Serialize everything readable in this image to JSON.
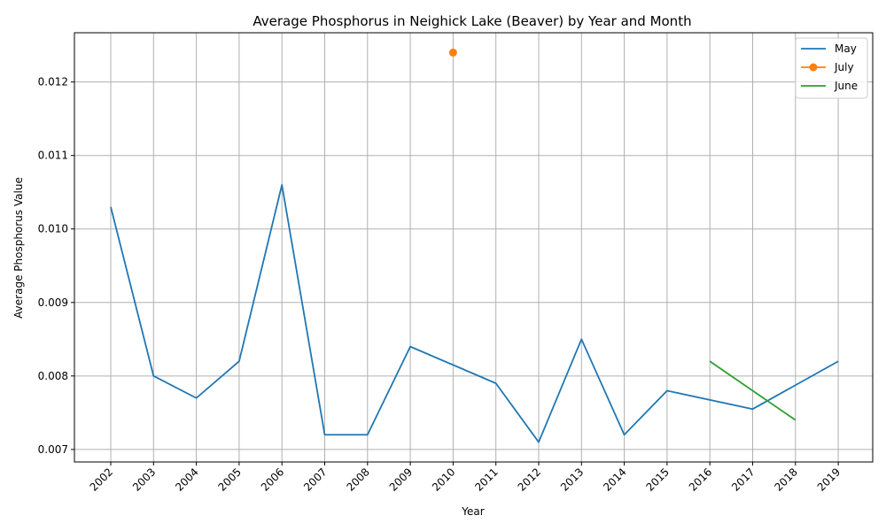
{
  "chart_data": {
    "type": "line",
    "title": "Average Phosphorus in Neighick Lake (Beaver) by Year and Month",
    "xlabel": "Year",
    "ylabel": "Average Phosphorus Value",
    "categories": [
      "2002",
      "2003",
      "2004",
      "2005",
      "2006",
      "2007",
      "2008",
      "2009",
      "2010",
      "2011",
      "2012",
      "2013",
      "2014",
      "2015",
      "2016",
      "2017",
      "2018",
      "2019"
    ],
    "yticks": [
      "0.007",
      "0.008",
      "0.009",
      "0.010",
      "0.011",
      "0.012"
    ],
    "ylim": [
      0.00683,
      0.01267
    ],
    "grid": true,
    "legend_position": "top-right",
    "series": [
      {
        "name": "May",
        "color": "#1f77b4",
        "marker": false,
        "values": [
          0.0103,
          0.008,
          0.0077,
          0.0082,
          0.0106,
          0.0072,
          0.0072,
          0.0084,
          null,
          0.0079,
          0.0071,
          0.0085,
          0.0072,
          0.0078,
          null,
          0.00755,
          null,
          0.0082
        ]
      },
      {
        "name": "July",
        "color": "#ff7f0e",
        "marker": true,
        "values": [
          null,
          null,
          null,
          null,
          null,
          null,
          null,
          null,
          0.0124,
          null,
          null,
          null,
          null,
          null,
          null,
          null,
          null,
          null
        ]
      },
      {
        "name": "June",
        "color": "#2ca02c",
        "marker": false,
        "values": [
          null,
          null,
          null,
          null,
          null,
          null,
          null,
          null,
          null,
          null,
          null,
          null,
          null,
          null,
          0.0082,
          null,
          0.0074,
          null
        ]
      }
    ]
  }
}
